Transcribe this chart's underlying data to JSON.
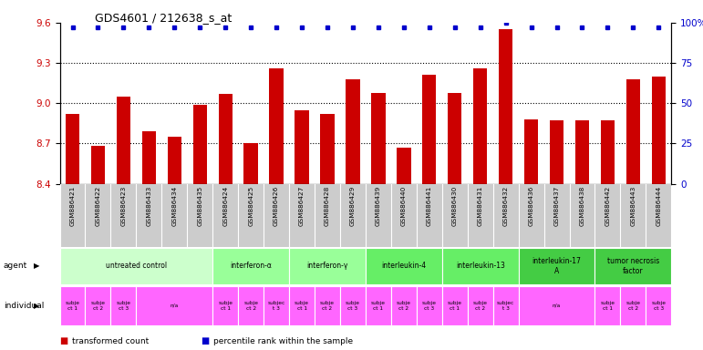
{
  "title": "GDS4601 / 212638_s_at",
  "samples": [
    "GSM886421",
    "GSM886422",
    "GSM886423",
    "GSM886433",
    "GSM886434",
    "GSM886435",
    "GSM886424",
    "GSM886425",
    "GSM886426",
    "GSM886427",
    "GSM886428",
    "GSM886429",
    "GSM886439",
    "GSM886440",
    "GSM886441",
    "GSM886430",
    "GSM886431",
    "GSM886432",
    "GSM886436",
    "GSM886437",
    "GSM886438",
    "GSM886442",
    "GSM886443",
    "GSM886444"
  ],
  "bar_values": [
    8.92,
    8.68,
    9.05,
    8.79,
    8.75,
    8.99,
    9.07,
    8.7,
    9.26,
    8.95,
    8.92,
    9.18,
    9.08,
    8.67,
    9.21,
    9.08,
    9.26,
    9.55,
    8.88,
    8.87,
    8.87,
    8.87,
    9.18,
    9.2
  ],
  "percentile_values": [
    97,
    97,
    97,
    97,
    97,
    97,
    97,
    97,
    97,
    97,
    97,
    97,
    97,
    97,
    97,
    97,
    97,
    100,
    97,
    97,
    97,
    97,
    97,
    97
  ],
  "ylim_left": [
    8.4,
    9.6
  ],
  "ylim_right": [
    0,
    100
  ],
  "yticks_left": [
    8.4,
    8.7,
    9.0,
    9.3,
    9.6
  ],
  "yticks_right": [
    0,
    25,
    50,
    75,
    100
  ],
  "bar_color": "#cc0000",
  "dot_color": "#0000cc",
  "background_color": "#ffffff",
  "agents": [
    {
      "label": "untreated control",
      "start": 0,
      "end": 6,
      "color": "#ccffcc"
    },
    {
      "label": "interferon-α",
      "start": 6,
      "end": 9,
      "color": "#99ff99"
    },
    {
      "label": "interferon-γ",
      "start": 9,
      "end": 12,
      "color": "#99ff99"
    },
    {
      "label": "interleukin-4",
      "start": 12,
      "end": 15,
      "color": "#66ee66"
    },
    {
      "label": "interleukin-13",
      "start": 15,
      "end": 18,
      "color": "#66ee66"
    },
    {
      "label": "interleukin-17\nA",
      "start": 18,
      "end": 21,
      "color": "#44cc44"
    },
    {
      "label": "tumor necrosis\nfactor",
      "start": 21,
      "end": 24,
      "color": "#44cc44"
    }
  ],
  "individuals": [
    {
      "label": "subje\nct 1",
      "start": 0,
      "end": 1,
      "color": "#ff66ff"
    },
    {
      "label": "subje\nct 2",
      "start": 1,
      "end": 2,
      "color": "#ff66ff"
    },
    {
      "label": "subje\nct 3",
      "start": 2,
      "end": 3,
      "color": "#ff66ff"
    },
    {
      "label": "n/a",
      "start": 3,
      "end": 6,
      "color": "#ff66ff"
    },
    {
      "label": "subje\nct 1",
      "start": 6,
      "end": 7,
      "color": "#ff66ff"
    },
    {
      "label": "subje\nct 2",
      "start": 7,
      "end": 8,
      "color": "#ff66ff"
    },
    {
      "label": "subjec\nt 3",
      "start": 8,
      "end": 9,
      "color": "#ff66ff"
    },
    {
      "label": "subje\nct 1",
      "start": 9,
      "end": 10,
      "color": "#ff66ff"
    },
    {
      "label": "subje\nct 2",
      "start": 10,
      "end": 11,
      "color": "#ff66ff"
    },
    {
      "label": "subje\nct 3",
      "start": 11,
      "end": 12,
      "color": "#ff66ff"
    },
    {
      "label": "subje\nct 1",
      "start": 12,
      "end": 13,
      "color": "#ff66ff"
    },
    {
      "label": "subje\nct 2",
      "start": 13,
      "end": 14,
      "color": "#ff66ff"
    },
    {
      "label": "subje\nct 3",
      "start": 14,
      "end": 15,
      "color": "#ff66ff"
    },
    {
      "label": "subje\nct 1",
      "start": 15,
      "end": 16,
      "color": "#ff66ff"
    },
    {
      "label": "subje\nct 2",
      "start": 16,
      "end": 17,
      "color": "#ff66ff"
    },
    {
      "label": "subjec\nt 3",
      "start": 17,
      "end": 18,
      "color": "#ff66ff"
    },
    {
      "label": "n/a",
      "start": 18,
      "end": 21,
      "color": "#ff66ff"
    },
    {
      "label": "subje\nct 1",
      "start": 21,
      "end": 22,
      "color": "#ff66ff"
    },
    {
      "label": "subje\nct 2",
      "start": 22,
      "end": 23,
      "color": "#ff66ff"
    },
    {
      "label": "subje\nct 3",
      "start": 23,
      "end": 24,
      "color": "#ff66ff"
    }
  ],
  "legend_items": [
    {
      "label": "transformed count",
      "color": "#cc0000"
    },
    {
      "label": "percentile rank within the sample",
      "color": "#0000cc"
    }
  ],
  "label_bg_color": "#cccccc",
  "label_border_color": "#aaaaaa"
}
